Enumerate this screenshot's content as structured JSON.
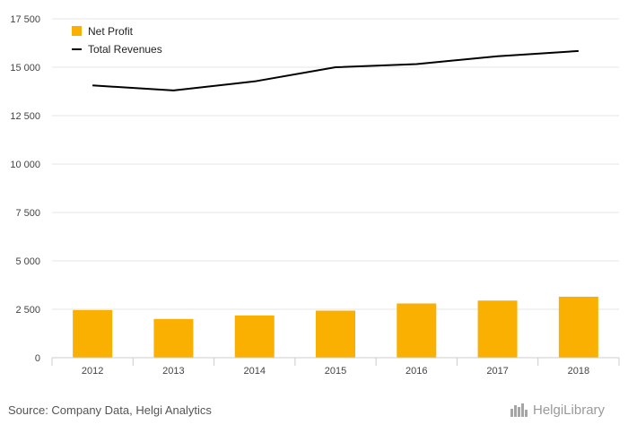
{
  "chart_data": {
    "type": "bar",
    "categories": [
      "2012",
      "2013",
      "2014",
      "2015",
      "2016",
      "2017",
      "2018"
    ],
    "series": [
      {
        "name": "Net Profit",
        "type": "bar",
        "color": "#f9b000",
        "values": [
          2460,
          2000,
          2180,
          2430,
          2800,
          2950,
          3150
        ]
      },
      {
        "name": "Total Revenues",
        "type": "line",
        "color": "#000000",
        "values": [
          14060,
          13800,
          14270,
          15000,
          15160,
          15570,
          15840
        ]
      }
    ],
    "y_ticks": [
      "0",
      "2 500",
      "5 000",
      "7 500",
      "10 000",
      "12 500",
      "15 000",
      "17 500"
    ],
    "ylim": [
      0,
      17500
    ],
    "grid": true,
    "legend_position": "top-left"
  },
  "source": "Source: Company Data, Helgi Analytics",
  "brand": {
    "name": "HelgiLibrary",
    "icon": "helgi-library-icon"
  }
}
